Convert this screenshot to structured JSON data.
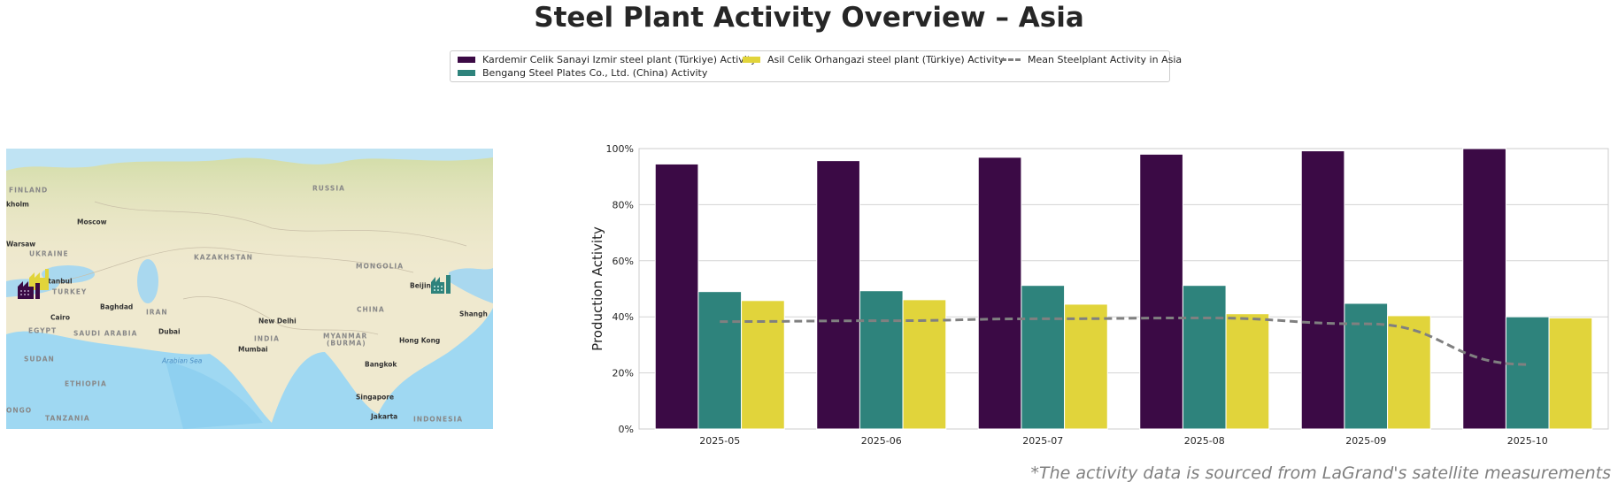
{
  "title": "Steel Plant Activity Overview – Asia",
  "footer": "*The activity data is sourced from LaGrand's satellite measurements",
  "legend": {
    "items": [
      {
        "label": "Kardemir Celik Sanayi Izmir steel plant (Türkiye) Activity",
        "color": "#3b0a45"
      },
      {
        "label": "Bengang Steel Plates Co., Ltd. (China) Activity",
        "color": "#2e837c"
      },
      {
        "label": "Asil Celik Orhangazi steel plant (Türkiye) Activity",
        "color": "#e1d43b"
      },
      {
        "label": "Mean Steelplant Activity in Asia",
        "color": "#808080",
        "style": "dashed"
      }
    ]
  },
  "map": {
    "labels": {
      "finland": "FINLAND",
      "russia": "RUSSIA",
      "kholm": "kholm",
      "moscow": "Moscow",
      "warsaw": "Warsaw",
      "ukraine": "UKRAINE",
      "kazakhstan": "KAZAKHSTAN",
      "mongolia": "MONGOLIA",
      "istanbul": "Istanbul",
      "turkey": "TURKEY",
      "baghdad": "Baghdad",
      "iran": "IRAN",
      "china": "CHINA",
      "cairo": "Cairo",
      "new_delhi": "New Delhi",
      "egypt": "EGYPT",
      "saudi_arabia": "SAUDI ARABIA",
      "dubai": "Dubai",
      "india": "INDIA",
      "myanmar": "MYANMAR",
      "burma": "(BURMA)",
      "mumbai": "Mumbai",
      "sudan": "SUDAN",
      "arabian_sea": "Arabian Sea",
      "bangkok": "Bangkok",
      "beijing": "Beijin",
      "shanghai": "Shangh",
      "hong_kong": "Hong Kong",
      "singapore": "Singapore",
      "ethiopia": "ETHIOPIA",
      "congo": "ONGO",
      "tanzania": "TANZANIA",
      "jakarta": "Jakarta",
      "indonesia": "INDONESIA"
    },
    "markers": [
      {
        "plant": "Kardemir Celik Sanayi Izmir steel plant (Türkiye)",
        "icon": "factory-icon",
        "color": "#3b0a45"
      },
      {
        "plant": "Asil Celik Orhangazi steel plant (Türkiye)",
        "icon": "factory-icon",
        "color": "#e1d43b"
      },
      {
        "plant": "Bengang Steel Plates Co., Ltd. (China)",
        "icon": "factory-icon",
        "color": "#2e837c"
      }
    ]
  },
  "chart_data": {
    "type": "bar",
    "title": "Steel Plant Activity Overview – Asia",
    "xlabel": "",
    "ylabel": "Production Activity",
    "ylim": [
      0,
      100
    ],
    "yticks": [
      "0%",
      "20%",
      "40%",
      "60%",
      "80%",
      "100%"
    ],
    "grid": true,
    "legend_placement": "top-center",
    "categories": [
      "2025-05",
      "2025-06",
      "2025-07",
      "2025-08",
      "2025-09",
      "2025-10"
    ],
    "series": [
      {
        "name": "Kardemir Celik Sanayi Izmir steel plant (Türkiye) Activity",
        "type": "bar",
        "color": "#3b0a45",
        "values": [
          94.5,
          95.7,
          96.9,
          98.0,
          99.2,
          100.0
        ]
      },
      {
        "name": "Bengang Steel Plates Co., Ltd. (China) Activity",
        "type": "bar",
        "color": "#2e837c",
        "values": [
          49.0,
          49.3,
          51.2,
          51.2,
          44.8,
          40.0
        ]
      },
      {
        "name": "Asil Celik Orhangazi steel plant (Türkiye) Activity",
        "type": "bar",
        "color": "#e1d43b",
        "values": [
          45.8,
          46.1,
          44.5,
          41.1,
          40.4,
          39.6
        ]
      },
      {
        "name": "Mean Steelplant Activity in Asia",
        "type": "line",
        "style": "dashed",
        "color": "#808080",
        "values": [
          38.3,
          38.6,
          39.3,
          39.6,
          37.5,
          23.0
        ]
      }
    ]
  }
}
